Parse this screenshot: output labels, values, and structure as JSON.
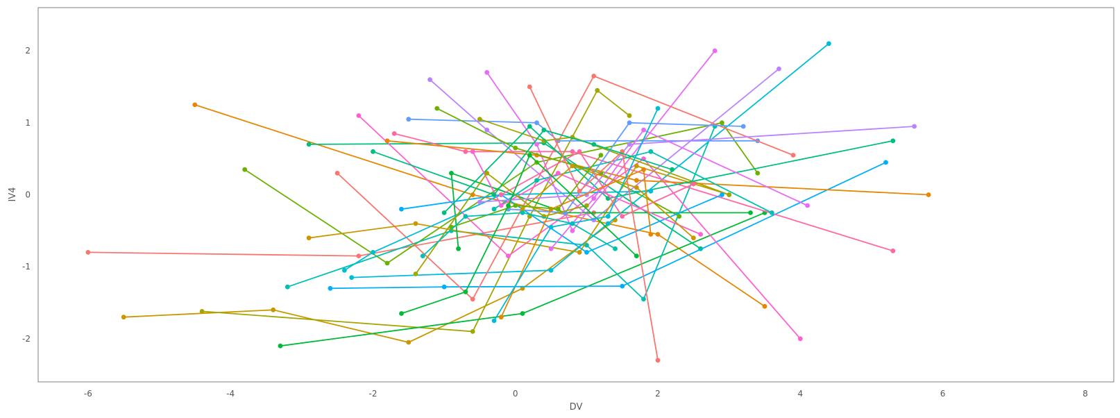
{
  "chart_data": {
    "type": "line",
    "title": "",
    "xlabel": "DV",
    "ylabel": "IV4",
    "xlim": [
      -6.7,
      8.4
    ],
    "ylim": [
      -2.6,
      2.6
    ],
    "xticks": [
      -6,
      -4,
      -2,
      0,
      2,
      4,
      6,
      8
    ],
    "yticks": [
      -2,
      -1,
      0,
      1,
      2
    ],
    "grid": false,
    "legend": "none",
    "colors": [
      "#f8766d",
      "#e58700",
      "#c99800",
      "#a3a500",
      "#6bb100",
      "#00ba38",
      "#00bf7d",
      "#00c0af",
      "#00bcd8",
      "#00b0f6",
      "#619cff",
      "#b983ff",
      "#e76bf3",
      "#fd61d1",
      "#ff67a4"
    ],
    "series": [
      {
        "x": [
          -6.0,
          -2.2,
          1.1
        ],
        "y": [
          -0.8,
          -0.85,
          -0.25
        ]
      },
      {
        "x": [
          -4.5,
          -0.6,
          2.0,
          3.5
        ],
        "y": [
          1.25,
          0.0,
          -0.55,
          -1.55
        ]
      },
      {
        "x": [
          -5.5,
          -3.4,
          -1.5,
          0.1,
          1.4
        ],
        "y": [
          -1.7,
          -1.6,
          -2.05,
          -1.3,
          -0.35
        ]
      },
      {
        "x": [
          -4.4,
          -0.6,
          0.2,
          1.15,
          1.6
        ],
        "y": [
          -1.62,
          -1.9,
          -0.3,
          1.45,
          1.1
        ]
      },
      {
        "x": [
          -3.8,
          -1.8,
          0.3,
          2.9,
          3.4
        ],
        "y": [
          0.35,
          -0.95,
          0.45,
          1.0,
          0.3
        ]
      },
      {
        "x": [
          -3.3,
          0.1,
          3.5
        ],
        "y": [
          -2.1,
          -1.65,
          -0.25
        ]
      },
      {
        "x": [
          -2.9,
          0.4,
          2.6
        ],
        "y": [
          0.7,
          0.72,
          -0.75
        ]
      },
      {
        "x": [
          -3.2,
          -0.9,
          1.0,
          1.8,
          2.8
        ],
        "y": [
          -1.28,
          -0.5,
          -0.7,
          -1.45,
          0.95
        ]
      },
      {
        "x": [
          -2.3,
          0.5,
          1.3,
          4.4
        ],
        "y": [
          -1.15,
          -1.05,
          -0.4,
          2.1
        ]
      },
      {
        "x": [
          -2.6,
          -1.0,
          1.5,
          5.2
        ],
        "y": [
          -1.3,
          -1.28,
          -1.27,
          0.45
        ]
      },
      {
        "x": [
          -1.5,
          0.3,
          0.6,
          3.4
        ],
        "y": [
          1.05,
          1.0,
          0.75,
          0.75
        ]
      },
      {
        "x": [
          -1.2,
          -0.4,
          1.1,
          3.7
        ],
        "y": [
          1.6,
          0.9,
          -0.35,
          1.75
        ]
      },
      {
        "x": [
          -0.4,
          0.3,
          0.8,
          2.8
        ],
        "y": [
          1.7,
          0.7,
          -0.5,
          2.0
        ]
      },
      {
        "x": [
          -2.2,
          -0.1,
          1.8,
          4.0
        ],
        "y": [
          1.1,
          -0.85,
          0.5,
          -2.0
        ]
      },
      {
        "x": [
          -1.7,
          -0.7,
          0.8,
          5.3
        ],
        "y": [
          0.85,
          0.6,
          0.6,
          -0.78
        ]
      },
      {
        "x": [
          -2.5,
          -0.6,
          1.1,
          3.9
        ],
        "y": [
          0.3,
          -1.45,
          1.65,
          0.55
        ]
      },
      {
        "x": [
          -1.8,
          0.3,
          1.7,
          5.8
        ],
        "y": [
          0.75,
          0.55,
          0.2,
          0.0
        ]
      },
      {
        "x": [
          -2.9,
          -1.4,
          0.9,
          1.7,
          3.0
        ],
        "y": [
          -0.6,
          -0.4,
          -0.8,
          0.4,
          0.0
        ]
      },
      {
        "x": [
          -0.5,
          0.4,
          0.8,
          3.0
        ],
        "y": [
          1.05,
          0.75,
          0.8,
          0.0
        ]
      },
      {
        "x": [
          -1.1,
          0.0,
          1.2,
          2.3
        ],
        "y": [
          1.2,
          0.65,
          0.3,
          -0.3
        ]
      },
      {
        "x": [
          -0.8,
          -0.9,
          0.7,
          3.3
        ],
        "y": [
          -0.75,
          0.3,
          -0.25,
          -0.25
        ]
      },
      {
        "x": [
          -1.0,
          0.2,
          1.3,
          5.3
        ],
        "y": [
          -0.25,
          0.95,
          -0.05,
          0.75
        ]
      },
      {
        "x": [
          -0.3,
          0.3,
          1.9,
          3.6
        ],
        "y": [
          -0.2,
          0.2,
          0.6,
          -0.25
        ]
      },
      {
        "x": [
          -2.4,
          -2.0,
          -0.2,
          1.9
        ],
        "y": [
          -1.05,
          -0.8,
          0.0,
          0.05
        ]
      },
      {
        "x": [
          -1.6,
          -0.2,
          1.0,
          2.9
        ],
        "y": [
          -0.2,
          0.0,
          -0.8,
          0.0
        ]
      },
      {
        "x": [
          -0.1,
          0.7,
          1.6,
          3.2
        ],
        "y": [
          -0.2,
          -0.25,
          1.0,
          0.95
        ]
      },
      {
        "x": [
          -0.5,
          1.0,
          1.6,
          5.6
        ],
        "y": [
          -0.1,
          0.0,
          0.7,
          0.95
        ]
      },
      {
        "x": [
          0.5,
          1.1,
          1.8,
          4.1
        ],
        "y": [
          -0.75,
          -0.05,
          0.9,
          -0.15
        ]
      },
      {
        "x": [
          -0.6,
          -0.2,
          0.6,
          2.6
        ],
        "y": [
          0.6,
          -0.15,
          0.3,
          -0.55
        ]
      },
      {
        "x": [
          -0.2,
          0.9,
          1.5,
          2.5
        ],
        "y": [
          0.0,
          0.6,
          -0.3,
          0.15
        ]
      },
      {
        "x": [
          0.2,
          0.9,
          1.5,
          2.0
        ],
        "y": [
          1.5,
          0.05,
          0.6,
          -2.3
        ]
      },
      {
        "x": [
          -0.2,
          0.5,
          1.8,
          1.9
        ],
        "y": [
          -1.7,
          -0.2,
          0.35,
          -0.55
        ]
      },
      {
        "x": [
          0.1,
          0.8,
          1.7,
          2.5
        ],
        "y": [
          -0.2,
          0.4,
          0.1,
          -0.6
        ]
      },
      {
        "x": [
          -1.4,
          -0.4,
          0.4,
          1.0
        ],
        "y": [
          -1.1,
          0.3,
          -0.3,
          -0.15
        ]
      },
      {
        "x": [
          -0.9,
          0.0,
          0.6,
          1.2
        ],
        "y": [
          -0.45,
          -0.15,
          -0.2,
          0.55
        ]
      },
      {
        "x": [
          -1.6,
          -0.7,
          -0.1,
          0.2,
          1.7
        ],
        "y": [
          -1.65,
          -1.35,
          -0.15,
          0.55,
          -0.85
        ]
      },
      {
        "x": [
          -2.0,
          -0.3,
          0.4,
          1.1,
          2.2
        ],
        "y": [
          0.6,
          0.0,
          0.9,
          0.7,
          0.35
        ]
      },
      {
        "x": [
          -1.3,
          -0.7,
          0.1,
          0.8,
          1.4
        ],
        "y": [
          -0.85,
          -0.3,
          -0.25,
          -0.4,
          -0.75
        ]
      },
      {
        "x": [
          -0.3,
          0.5,
          1.3,
          2.0
        ],
        "y": [
          -1.75,
          -0.45,
          -0.3,
          1.2
        ]
      }
    ]
  }
}
